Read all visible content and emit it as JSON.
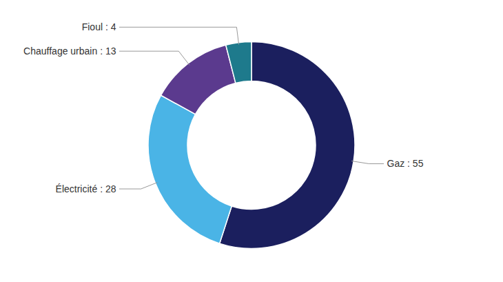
{
  "chart_data": {
    "type": "pie",
    "values": [
      55,
      28,
      13,
      4
    ],
    "value_labels": [
      "Gaz : 55",
      "Électricité : 28",
      "Chauffage urbain : 13",
      "Fioul : 4"
    ],
    "colors": [
      "#1b1f5e",
      "#4ab4e6",
      "#5b3a8e",
      "#1e7a8c"
    ],
    "data_labels": true
  }
}
